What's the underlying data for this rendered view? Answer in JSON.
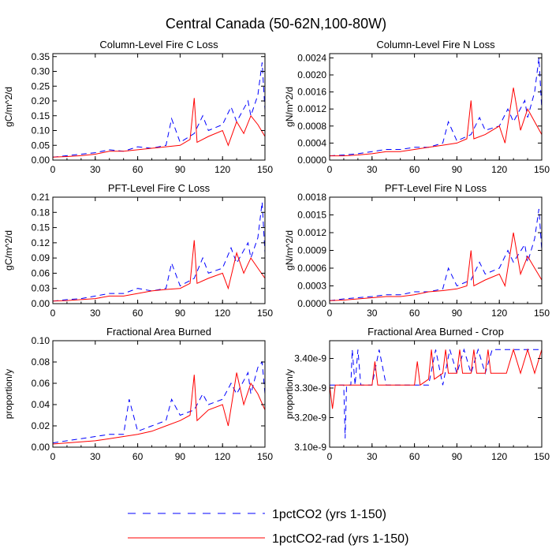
{
  "figure": {
    "title": "Central Canada (50-62N,100-80W)"
  },
  "legend": {
    "entries": [
      {
        "label": "1pctCO2 (yrs 1-150)",
        "color": "#0000ff",
        "dash": "dashed"
      },
      {
        "label": "1pctCO2-rad (yrs 1-150)",
        "color": "#ff0000",
        "dash": "solid"
      }
    ]
  },
  "chart_data": [
    {
      "type": "line",
      "title": "Column-Level Fire C Loss",
      "ylabel": "gC/m^2/d",
      "xlabel": "",
      "xlim": [
        0,
        150
      ],
      "ylim": [
        0,
        0.36
      ],
      "xticks": [
        0,
        30,
        60,
        90,
        120,
        150
      ],
      "xtick_labels": [
        "0",
        "30",
        "60",
        "90",
        "120",
        "150"
      ],
      "yticks": [
        0,
        0.05,
        0.1,
        0.15,
        0.2,
        0.25,
        0.3,
        0.35
      ],
      "ytick_labels": [
        "0.00",
        "0.05",
        "0.10",
        "0.15",
        "0.20",
        "0.25",
        "0.30",
        "0.35"
      ],
      "series": [
        {
          "name": "1pctCO2 (yrs 1-150)",
          "color": "#0000ff",
          "dash": "dashed",
          "x": [
            0,
            10,
            20,
            30,
            40,
            50,
            60,
            70,
            80,
            84,
            90,
            100,
            106,
            110,
            120,
            126,
            130,
            138,
            140,
            145,
            148,
            150
          ],
          "y": [
            0.01,
            0.015,
            0.02,
            0.025,
            0.035,
            0.03,
            0.045,
            0.04,
            0.05,
            0.14,
            0.06,
            0.09,
            0.15,
            0.1,
            0.12,
            0.18,
            0.13,
            0.2,
            0.15,
            0.22,
            0.33,
            0.17
          ]
        },
        {
          "name": "1pctCO2-rad (yrs 1-150)",
          "color": "#ff0000",
          "dash": "solid",
          "x": [
            0,
            10,
            20,
            30,
            40,
            50,
            60,
            70,
            80,
            90,
            97,
            100,
            102,
            110,
            120,
            124,
            130,
            135,
            140,
            145,
            150
          ],
          "y": [
            0.01,
            0.012,
            0.015,
            0.02,
            0.03,
            0.03,
            0.035,
            0.04,
            0.045,
            0.05,
            0.07,
            0.21,
            0.06,
            0.08,
            0.1,
            0.05,
            0.13,
            0.09,
            0.15,
            0.12,
            0.08
          ]
        }
      ]
    },
    {
      "type": "line",
      "title": "Column-Level Fire N Loss",
      "ylabel": "gN/m^2/d",
      "xlabel": "",
      "xlim": [
        0,
        150
      ],
      "ylim": [
        0,
        0.0025
      ],
      "xticks": [
        0,
        30,
        60,
        90,
        120,
        150
      ],
      "xtick_labels": [
        "0",
        "30",
        "60",
        "90",
        "120",
        "150"
      ],
      "yticks": [
        0,
        0.0004,
        0.0008,
        0.0012,
        0.0016,
        0.002,
        0.0024
      ],
      "ytick_labels": [
        "0.0000",
        "0.0004",
        "0.0008",
        "0.0012",
        "0.0016",
        "0.0020",
        "0.0024"
      ],
      "series": [
        {
          "name": "1pctCO2 (yrs 1-150)",
          "color": "#0000ff",
          "dash": "dashed",
          "x": [
            0,
            10,
            20,
            30,
            40,
            50,
            60,
            70,
            80,
            84,
            90,
            100,
            106,
            110,
            120,
            126,
            130,
            138,
            140,
            145,
            148,
            150
          ],
          "y": [
            0.0001,
            0.00012,
            0.00015,
            0.0002,
            0.00025,
            0.00025,
            0.0003,
            0.0003,
            0.0004,
            0.0009,
            0.00045,
            0.0006,
            0.001,
            0.0007,
            0.0008,
            0.0012,
            0.0009,
            0.0014,
            0.001,
            0.0016,
            0.0024,
            0.0012
          ]
        },
        {
          "name": "1pctCO2-rad (yrs 1-150)",
          "color": "#ff0000",
          "dash": "solid",
          "x": [
            0,
            10,
            20,
            30,
            40,
            50,
            60,
            70,
            80,
            90,
            97,
            100,
            102,
            110,
            120,
            124,
            130,
            135,
            140,
            145,
            150
          ],
          "y": [
            0.0001,
            0.0001,
            0.00012,
            0.00015,
            0.0002,
            0.0002,
            0.00025,
            0.0003,
            0.00035,
            0.0004,
            0.0005,
            0.0014,
            0.0005,
            0.0006,
            0.0008,
            0.0004,
            0.0017,
            0.0007,
            0.0012,
            0.0009,
            0.0006
          ]
        }
      ]
    },
    {
      "type": "line",
      "title": "PFT-Level Fire C Loss",
      "ylabel": "gC/m^2/d",
      "xlabel": "",
      "xlim": [
        0,
        150
      ],
      "ylim": [
        0,
        0.21
      ],
      "xticks": [
        0,
        30,
        60,
        90,
        120,
        150
      ],
      "xtick_labels": [
        "0",
        "30",
        "60",
        "90",
        "120",
        "150"
      ],
      "yticks": [
        0,
        0.03,
        0.06,
        0.09,
        0.12,
        0.15,
        0.18,
        0.21
      ],
      "ytick_labels": [
        "0.00",
        "0.03",
        "0.06",
        "0.09",
        "0.12",
        "0.15",
        "0.18",
        "0.21"
      ],
      "series": [
        {
          "name": "1pctCO2 (yrs 1-150)",
          "color": "#0000ff",
          "dash": "dashed",
          "x": [
            0,
            10,
            20,
            30,
            40,
            50,
            60,
            70,
            80,
            84,
            90,
            100,
            106,
            110,
            120,
            126,
            130,
            138,
            140,
            145,
            148,
            150
          ],
          "y": [
            0.005,
            0.008,
            0.01,
            0.015,
            0.02,
            0.02,
            0.03,
            0.025,
            0.03,
            0.08,
            0.035,
            0.05,
            0.09,
            0.06,
            0.07,
            0.11,
            0.08,
            0.12,
            0.09,
            0.13,
            0.2,
            0.1
          ]
        },
        {
          "name": "1pctCO2-rad (yrs 1-150)",
          "color": "#ff0000",
          "dash": "solid",
          "x": [
            0,
            10,
            20,
            30,
            40,
            50,
            60,
            70,
            80,
            90,
            97,
            100,
            102,
            110,
            120,
            124,
            130,
            135,
            140,
            145,
            150
          ],
          "y": [
            0.005,
            0.006,
            0.008,
            0.01,
            0.015,
            0.015,
            0.02,
            0.025,
            0.028,
            0.03,
            0.04,
            0.125,
            0.04,
            0.05,
            0.06,
            0.03,
            0.1,
            0.06,
            0.09,
            0.07,
            0.05
          ]
        }
      ]
    },
    {
      "type": "line",
      "title": "PFT-Level Fire N Loss",
      "ylabel": "gN/m^2/d",
      "xlabel": "",
      "xlim": [
        0,
        150
      ],
      "ylim": [
        0,
        0.0018
      ],
      "xticks": [
        0,
        30,
        60,
        90,
        120,
        150
      ],
      "xtick_labels": [
        "0",
        "30",
        "60",
        "90",
        "120",
        "150"
      ],
      "yticks": [
        0,
        0.0003,
        0.0006,
        0.0009,
        0.0012,
        0.0015,
        0.0018
      ],
      "ytick_labels": [
        "0.0000",
        "0.0003",
        "0.0006",
        "0.0009",
        "0.0012",
        "0.0015",
        "0.0018"
      ],
      "series": [
        {
          "name": "1pctCO2 (yrs 1-150)",
          "color": "#0000ff",
          "dash": "dashed",
          "x": [
            0,
            10,
            20,
            30,
            40,
            50,
            60,
            70,
            80,
            84,
            90,
            100,
            106,
            110,
            120,
            126,
            130,
            138,
            140,
            145,
            148,
            150
          ],
          "y": [
            5e-05,
            8e-05,
            0.0001,
            0.00012,
            0.00015,
            0.00015,
            0.0002,
            0.0002,
            0.00025,
            0.0006,
            0.0003,
            0.0004,
            0.0007,
            0.0005,
            0.0006,
            0.0009,
            0.0007,
            0.001,
            0.0007,
            0.0011,
            0.0016,
            0.0009
          ]
        },
        {
          "name": "1pctCO2-rad (yrs 1-150)",
          "color": "#ff0000",
          "dash": "solid",
          "x": [
            0,
            10,
            20,
            30,
            40,
            50,
            60,
            70,
            80,
            90,
            97,
            100,
            102,
            110,
            120,
            124,
            130,
            135,
            140,
            145,
            150
          ],
          "y": [
            5e-05,
            6e-05,
            8e-05,
            0.0001,
            0.00012,
            0.00012,
            0.00015,
            0.0002,
            0.00022,
            0.00025,
            0.0003,
            0.0009,
            0.0003,
            0.0004,
            0.0005,
            0.0003,
            0.0012,
            0.0005,
            0.0008,
            0.0006,
            0.0004
          ]
        }
      ]
    },
    {
      "type": "line",
      "title": "Fractional Area Burned",
      "ylabel": "proportion/y",
      "xlabel": "",
      "xlim": [
        0,
        150
      ],
      "ylim": [
        0,
        0.1
      ],
      "xticks": [
        0,
        30,
        60,
        90,
        120,
        150
      ],
      "xtick_labels": [
        "0",
        "30",
        "60",
        "90",
        "120",
        "150"
      ],
      "yticks": [
        0,
        0.02,
        0.04,
        0.06,
        0.08,
        0.1
      ],
      "ytick_labels": [
        "0.00",
        "0.02",
        "0.04",
        "0.06",
        "0.08",
        "0.10"
      ],
      "series": [
        {
          "name": "1pctCO2 (yrs 1-150)",
          "color": "#0000ff",
          "dash": "dashed",
          "x": [
            0,
            10,
            20,
            30,
            40,
            50,
            54,
            60,
            70,
            80,
            84,
            90,
            100,
            106,
            110,
            120,
            126,
            130,
            138,
            140,
            145,
            148,
            150
          ],
          "y": [
            0.004,
            0.006,
            0.008,
            0.01,
            0.012,
            0.012,
            0.045,
            0.015,
            0.02,
            0.025,
            0.045,
            0.03,
            0.035,
            0.05,
            0.04,
            0.045,
            0.06,
            0.05,
            0.07,
            0.05,
            0.075,
            0.08,
            0.05
          ]
        },
        {
          "name": "1pctCO2-rad (yrs 1-150)",
          "color": "#ff0000",
          "dash": "solid",
          "x": [
            0,
            10,
            20,
            30,
            40,
            50,
            60,
            70,
            80,
            90,
            97,
            100,
            102,
            110,
            120,
            124,
            130,
            135,
            140,
            145,
            150
          ],
          "y": [
            0.003,
            0.004,
            0.005,
            0.006,
            0.008,
            0.01,
            0.012,
            0.015,
            0.02,
            0.025,
            0.03,
            0.068,
            0.025,
            0.035,
            0.04,
            0.02,
            0.07,
            0.04,
            0.06,
            0.05,
            0.035
          ]
        }
      ]
    },
    {
      "type": "line",
      "title": "Fractional Area Burned - Crop",
      "ylabel": "proportion/y",
      "xlabel": "",
      "xlim": [
        0,
        150
      ],
      "ylim": [
        3.1e-09,
        3.46e-09
      ],
      "xticks": [
        0,
        30,
        60,
        90,
        120,
        150
      ],
      "xtick_labels": [
        "0",
        "30",
        "60",
        "90",
        "120",
        "150"
      ],
      "yticks": [
        3.1e-09,
        3.2e-09,
        3.3e-09,
        3.4e-09
      ],
      "ytick_labels": [
        "3.10e-9",
        "3.20e-9",
        "3.30e-9",
        "3.40e-9"
      ],
      "series": [
        {
          "name": "1pctCO2 (yrs 1-150)",
          "color": "#0000ff",
          "dash": "dashed",
          "x": [
            0,
            5,
            10,
            11,
            12,
            15,
            16,
            18,
            20,
            22,
            30,
            35,
            40,
            50,
            60,
            70,
            75,
            80,
            85,
            90,
            95,
            100,
            105,
            110,
            115,
            120,
            125,
            130,
            140,
            150
          ],
          "y": [
            3.31e-09,
            3.31e-09,
            3.31e-09,
            3.13e-09,
            3.31e-09,
            3.31e-09,
            3.43e-09,
            3.31e-09,
            3.43e-09,
            3.31e-09,
            3.31e-09,
            3.43e-09,
            3.31e-09,
            3.31e-09,
            3.31e-09,
            3.31e-09,
            3.43e-09,
            3.31e-09,
            3.43e-09,
            3.35e-09,
            3.43e-09,
            3.35e-09,
            3.43e-09,
            3.35e-09,
            3.43e-09,
            3.43e-09,
            3.43e-09,
            3.43e-09,
            3.43e-09,
            3.43e-09
          ]
        },
        {
          "name": "1pctCO2-rad (yrs 1-150)",
          "color": "#ff0000",
          "dash": "solid",
          "x": [
            0,
            2,
            4,
            6,
            10,
            20,
            30,
            32,
            34,
            40,
            50,
            60,
            62,
            64,
            70,
            72,
            74,
            80,
            82,
            84,
            90,
            92,
            94,
            100,
            102,
            104,
            110,
            112,
            114,
            120,
            125,
            130,
            135,
            140,
            145,
            150
          ],
          "y": [
            3.31e-09,
            3.23e-09,
            3.31e-09,
            3.31e-09,
            3.31e-09,
            3.31e-09,
            3.31e-09,
            3.39e-09,
            3.31e-09,
            3.31e-09,
            3.31e-09,
            3.31e-09,
            3.39e-09,
            3.31e-09,
            3.33e-09,
            3.43e-09,
            3.33e-09,
            3.35e-09,
            3.43e-09,
            3.35e-09,
            3.35e-09,
            3.43e-09,
            3.35e-09,
            3.35e-09,
            3.43e-09,
            3.35e-09,
            3.35e-09,
            3.43e-09,
            3.35e-09,
            3.35e-09,
            3.35e-09,
            3.43e-09,
            3.35e-09,
            3.43e-09,
            3.35e-09,
            3.43e-09
          ]
        }
      ]
    }
  ]
}
